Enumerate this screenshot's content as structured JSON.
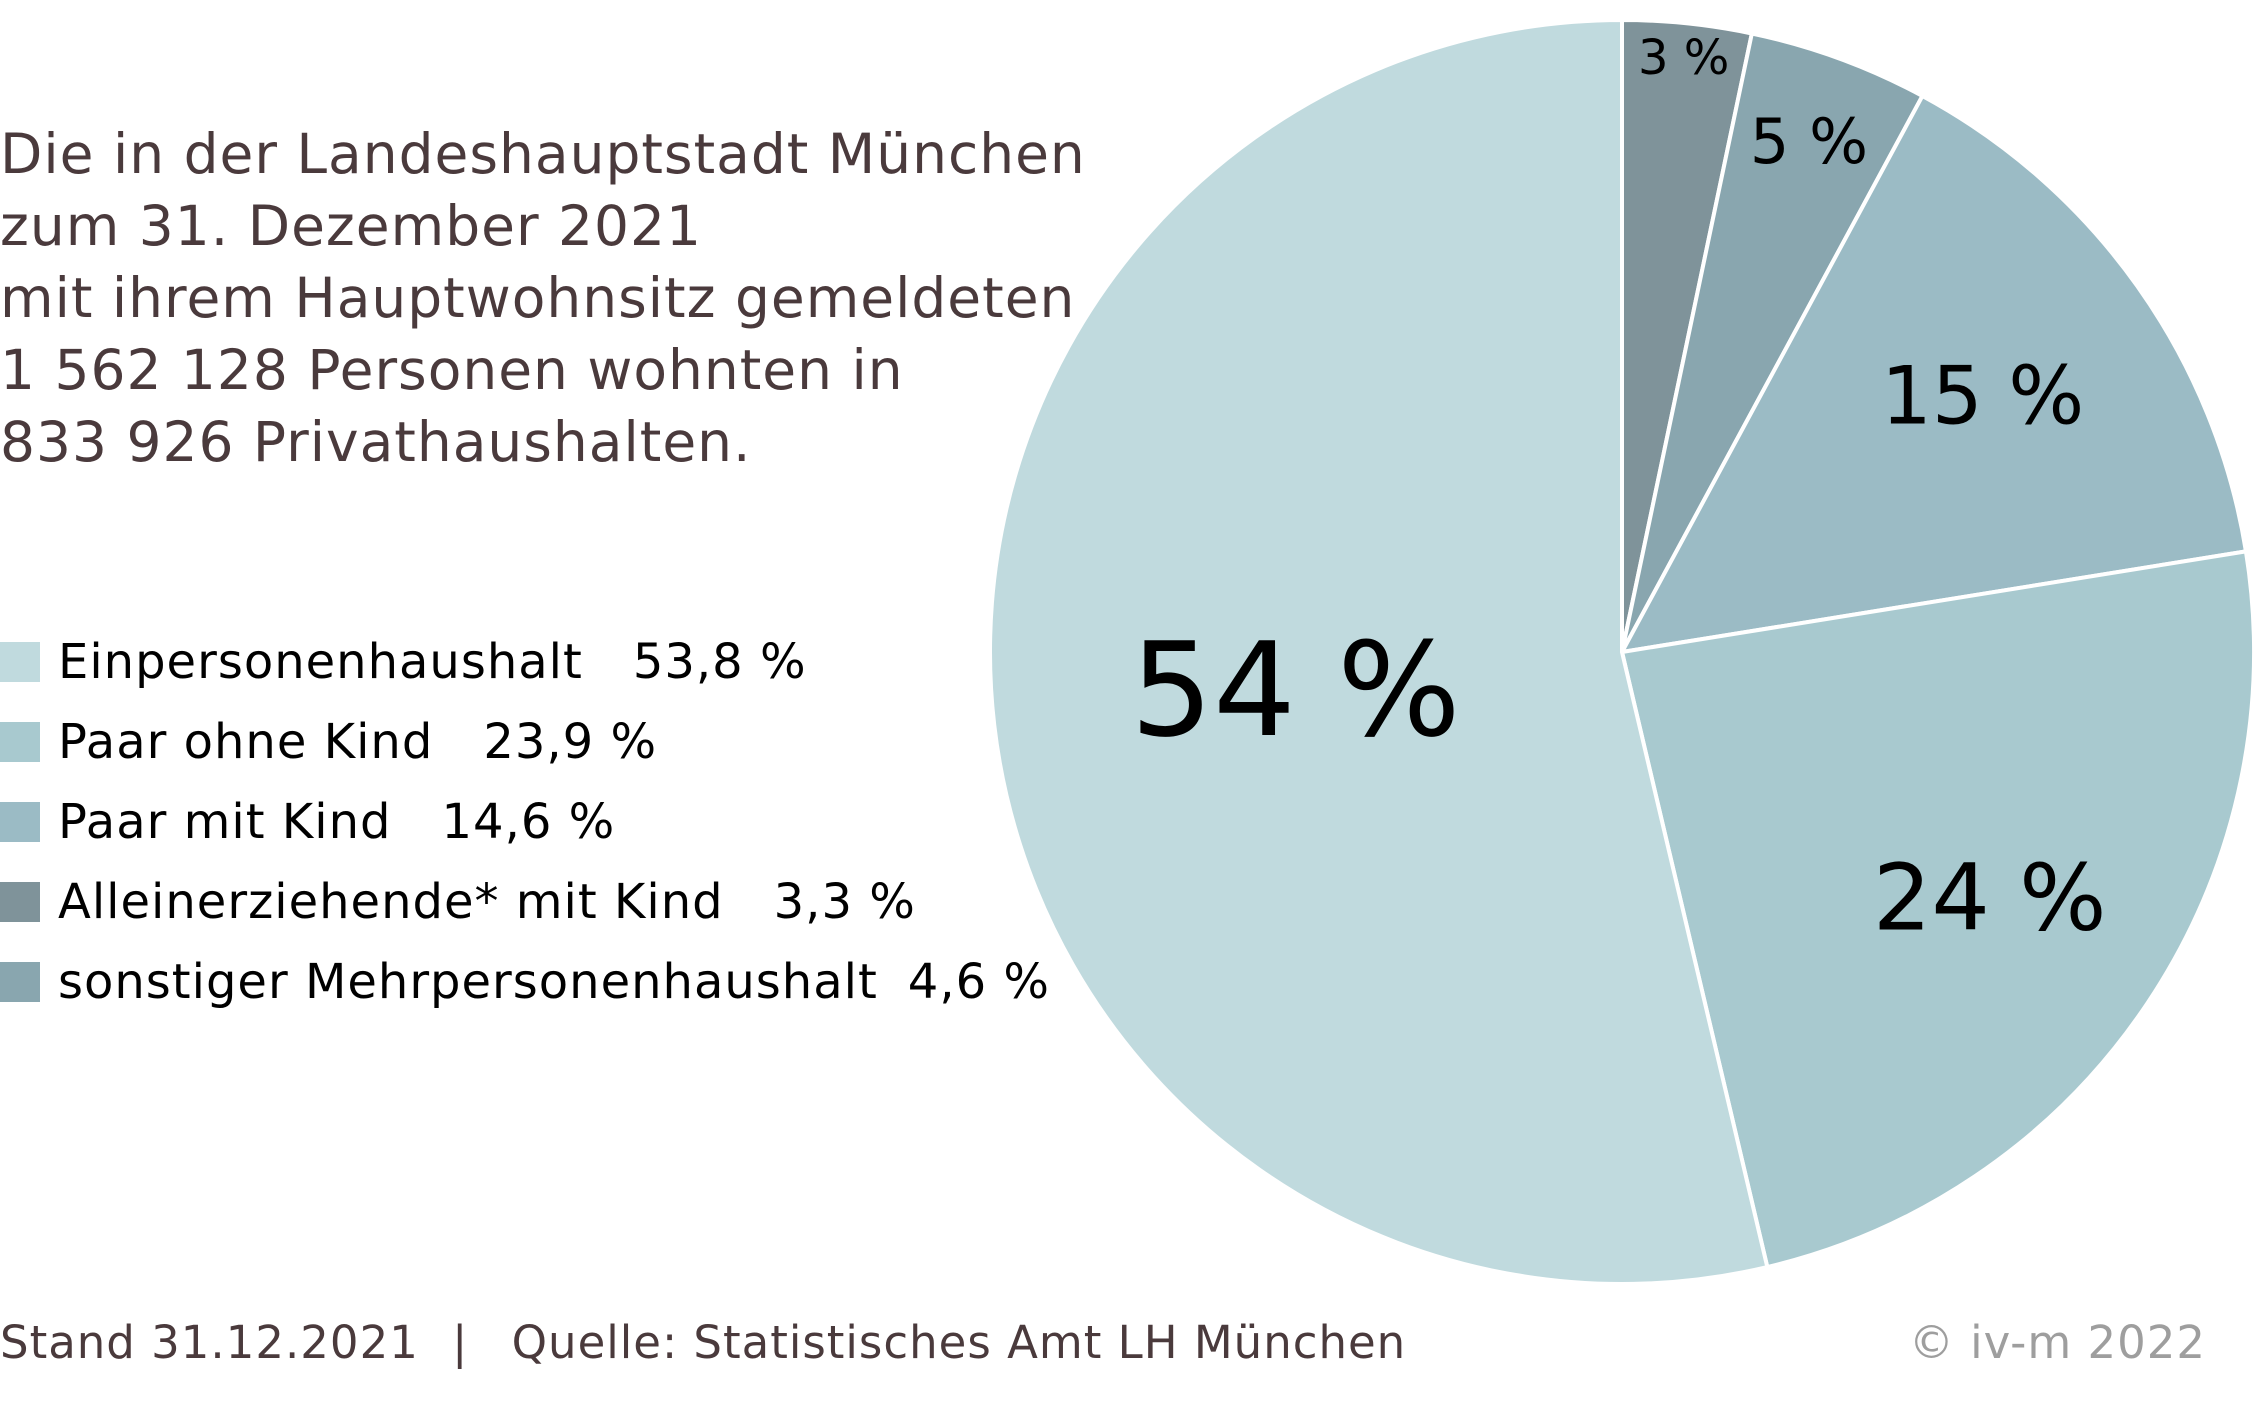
{
  "intro": {
    "lines": [
      "Die in der Landeshauptstadt München",
      "zum 31. Dezember 2021",
      "mit ihrem Hauptwohnsitz gemeldeten",
      "1 562 128 Personen wohnten in",
      "833 926 Privathaushalten."
    ]
  },
  "legend": [
    {
      "label": "Einpersonenhaushalt",
      "value": "53,8 %",
      "color": "#c0dade"
    },
    {
      "label": "Paar ohne Kind",
      "value": "23,9 %",
      "color": "#a8c9cf"
    },
    {
      "label": "Paar mit Kind",
      "value": "14,6 %",
      "color": "#9bbbc5"
    },
    {
      "label": "Alleinerziehende* mit Kind",
      "value": "3,3 %",
      "color": "#7f939a"
    },
    {
      "label": "sonstiger Mehrpersonenhaushalt",
      "value": "4,6 %",
      "color": "#89a6af"
    }
  ],
  "footer": {
    "stand": "Stand 31.12.2021",
    "separator": "|",
    "source": "Quelle: Statistisches Amt LH München",
    "copyright": "© iv-m 2022"
  },
  "chart_data": {
    "type": "pie",
    "start_angle_deg": 0,
    "direction": "counterclockwise",
    "slices": [
      {
        "name": "Alleinerziehende* mit Kind",
        "value": 3.3,
        "label": "3 %",
        "color": "#7f939a"
      },
      {
        "name": "sonstiger Mehrpersonenhaushalt",
        "value": 4.6,
        "label": "5 %",
        "color": "#89a6af"
      },
      {
        "name": "Paar mit Kind",
        "value": 14.6,
        "label": "15 %",
        "color": "#9bbbc5"
      },
      {
        "name": "Paar ohne Kind",
        "value": 23.9,
        "label": "24 %",
        "color": "#a8c9cf"
      },
      {
        "name": "Einpersonenhaushalt",
        "value": 53.8,
        "label": "54 %",
        "color": "#c0dade"
      }
    ]
  }
}
